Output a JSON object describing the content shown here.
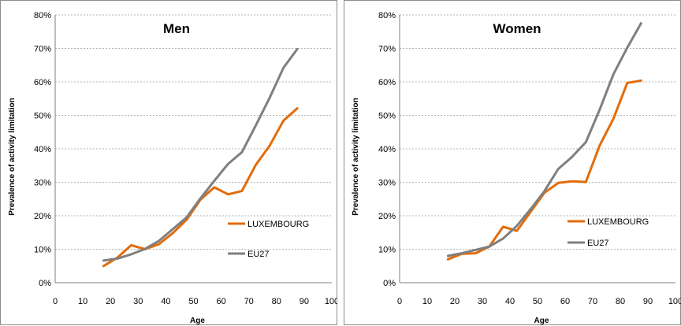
{
  "chart_data": [
    {
      "type": "line",
      "title": "Men",
      "xlabel": "Age",
      "ylabel": "Prevalence of activity limitation",
      "xlim": [
        0,
        100
      ],
      "ylim": [
        0,
        80
      ],
      "xticks": [
        0,
        10,
        20,
        30,
        40,
        50,
        60,
        70,
        80,
        90,
        100
      ],
      "yticks": [
        "0%",
        "10%",
        "20%",
        "30%",
        "40%",
        "50%",
        "60%",
        "70%",
        "80%"
      ],
      "grid": "horizontal dashed",
      "legend_position": "lower-right",
      "x": [
        17.5,
        22.5,
        27.5,
        32.5,
        37.5,
        42.5,
        47.5,
        52.5,
        57.5,
        62.5,
        67.5,
        72.5,
        77.5,
        82.5,
        87.5
      ],
      "series": [
        {
          "name": "LUXEMBOURG",
          "color": "#E36C0A",
          "values": [
            5,
            7.5,
            11.2,
            10,
            11.5,
            14.8,
            18.8,
            24.8,
            28.5,
            26.4,
            27.4,
            35.2,
            40.9,
            48.4,
            52.1
          ]
        },
        {
          "name": "EU27",
          "color": "#7F7F7F",
          "values": [
            6.6,
            7.2,
            8.5,
            10.1,
            12.5,
            16,
            19.5,
            25.2,
            30.4,
            35.5,
            39,
            47,
            55.2,
            64.2,
            69.8
          ]
        }
      ]
    },
    {
      "type": "line",
      "title": "Women",
      "xlabel": "Age",
      "ylabel": "Prevalence of activity limitation",
      "xlim": [
        0,
        100
      ],
      "ylim": [
        0,
        80
      ],
      "xticks": [
        0,
        10,
        20,
        30,
        40,
        50,
        60,
        70,
        80,
        90,
        100
      ],
      "yticks": [
        "0%",
        "10%",
        "20%",
        "30%",
        "40%",
        "50%",
        "60%",
        "70%",
        "80%"
      ],
      "grid": "horizontal dashed",
      "legend_position": "lower-right",
      "x": [
        17.5,
        22.5,
        27.5,
        32.5,
        37.5,
        42.5,
        47.5,
        52.5,
        57.5,
        62.5,
        67.5,
        72.5,
        77.5,
        82.5,
        87.5
      ],
      "series": [
        {
          "name": "LUXEMBOURG",
          "color": "#E36C0A",
          "values": [
            7,
            8.6,
            8.8,
            10.8,
            16.7,
            15.5,
            21.2,
            26.9,
            29.8,
            30.3,
            30.1,
            41,
            49,
            59.7,
            60.4
          ]
        },
        {
          "name": "EU27",
          "color": "#7F7F7F",
          "values": [
            8,
            8.8,
            9.8,
            10.8,
            13.2,
            17,
            22,
            27.4,
            34,
            37.6,
            42,
            51.7,
            62.3,
            70.2,
            77.5
          ]
        }
      ]
    }
  ]
}
